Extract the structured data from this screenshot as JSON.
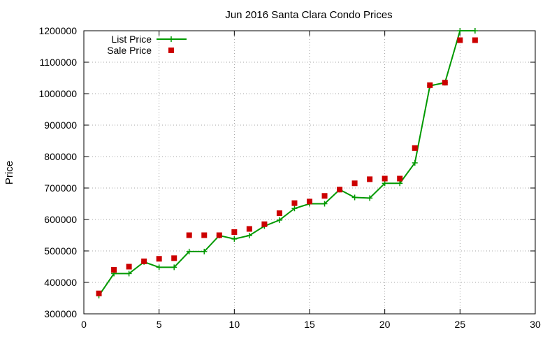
{
  "chart_data": {
    "type": "line",
    "title": "Jun 2016 Santa Clara Condo Prices",
    "xlabel": "",
    "ylabel": "Price",
    "xlim": [
      0,
      30
    ],
    "ylim": [
      300000,
      1200000
    ],
    "x_ticks": [
      0,
      5,
      10,
      15,
      20,
      25,
      30
    ],
    "y_ticks": [
      300000,
      400000,
      500000,
      600000,
      700000,
      800000,
      900000,
      1000000,
      1100000,
      1200000
    ],
    "x_tick_labels": [
      "0",
      "5",
      "10",
      "15",
      "20",
      "25",
      "30"
    ],
    "y_tick_labels": [
      "300000",
      "400000",
      "500000",
      "600000",
      "700000",
      "800000",
      "900000",
      "1000000",
      "1100000",
      "1200000"
    ],
    "grid": true,
    "legend_position": "top-left",
    "series": [
      {
        "name": "List Price",
        "style": "line-plus",
        "color": "#009900",
        "x": [
          1,
          2,
          3,
          4,
          5,
          6,
          7,
          8,
          9,
          10,
          11,
          12,
          13,
          14,
          15,
          16,
          17,
          18,
          19,
          20,
          21,
          22,
          23,
          24,
          25,
          26
        ],
        "y": [
          358000,
          428000,
          428000,
          465000,
          448000,
          448000,
          498000,
          498000,
          549000,
          538000,
          549000,
          579000,
          598000,
          635000,
          650000,
          650000,
          695000,
          670000,
          668000,
          715000,
          715000,
          780000,
          1025000,
          1035000,
          1200000,
          1200000
        ]
      },
      {
        "name": "Sale Price",
        "style": "square-markers",
        "color": "#cc0000",
        "x": [
          1,
          2,
          3,
          4,
          5,
          6,
          7,
          8,
          9,
          10,
          11,
          12,
          13,
          14,
          15,
          16,
          17,
          18,
          19,
          20,
          21,
          22,
          23,
          24,
          25,
          26
        ],
        "y": [
          365000,
          440000,
          450000,
          467000,
          475000,
          477000,
          550000,
          550000,
          550000,
          560000,
          570000,
          585000,
          620000,
          652000,
          657000,
          675000,
          695000,
          715000,
          728000,
          730000,
          730000,
          827000,
          1027000,
          1035000,
          1170000,
          1170000
        ]
      }
    ]
  }
}
